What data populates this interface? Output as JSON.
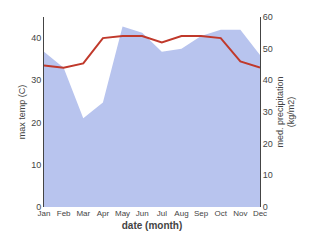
{
  "chart_data": {
    "type": "line",
    "categories": [
      "Jan",
      "Feb",
      "Mar",
      "Apr",
      "May",
      "Jun",
      "Jul",
      "Aug",
      "Sep",
      "Oct",
      "Nov",
      "Dec"
    ],
    "series": [
      {
        "type": "line",
        "color": "#c0392b",
        "values": [
          33.5,
          33.0,
          34.0,
          40.0,
          40.5,
          40.5,
          39.0,
          40.5,
          40.5,
          40.0,
          34.5,
          33.0
        ]
      },
      {
        "type": "area",
        "color": "#b8c4ee",
        "axis": "y2",
        "values": [
          49,
          44,
          28,
          33,
          57,
          55,
          49,
          50,
          54,
          56,
          56,
          48
        ]
      }
    ],
    "xlabel": "date (month)",
    "ylabel": "max temp (C)",
    "y2label": "med. precipitation\n(kg/m2)",
    "ylim": [
      0,
      45
    ],
    "yticks": [
      0,
      10,
      20,
      30,
      40
    ],
    "y2lim": [
      0,
      60
    ],
    "y2ticks": [
      0,
      10,
      20,
      30,
      40,
      50,
      60
    ],
    "grid": false
  }
}
